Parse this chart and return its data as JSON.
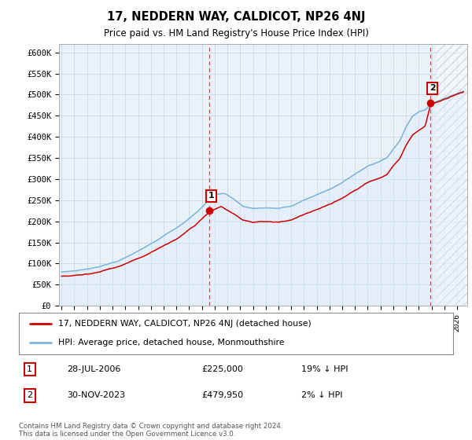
{
  "title": "17, NEDDERN WAY, CALDICOT, NP26 4NJ",
  "subtitle": "Price paid vs. HM Land Registry's House Price Index (HPI)",
  "ylabel_ticks": [
    "£0",
    "£50K",
    "£100K",
    "£150K",
    "£200K",
    "£250K",
    "£300K",
    "£350K",
    "£400K",
    "£450K",
    "£500K",
    "£550K",
    "£600K"
  ],
  "ytick_values": [
    0,
    50000,
    100000,
    150000,
    200000,
    250000,
    300000,
    350000,
    400000,
    450000,
    500000,
    550000,
    600000
  ],
  "ylim": [
    0,
    620000
  ],
  "xlim_start": 1994.8,
  "xlim_end": 2026.8,
  "hpi_line_color": "#7ab4d8",
  "price_line_color": "#cc0000",
  "hpi_fill_color": "#ddeeff",
  "legend_property_label": "17, NEDDERN WAY, CALDICOT, NP26 4NJ (detached house)",
  "legend_hpi_label": "HPI: Average price, detached house, Monmouthshire",
  "table_row1": [
    "1",
    "28-JUL-2006",
    "£225,000",
    "19% ↓ HPI"
  ],
  "table_row2": [
    "2",
    "30-NOV-2023",
    "£479,950",
    "2% ↓ HPI"
  ],
  "footnote": "Contains HM Land Registry data © Crown copyright and database right 2024.\nThis data is licensed under the Open Government Licence v3.0.",
  "bg_color": "#ffffff",
  "grid_color": "#c8d8e8",
  "vline_color": "#dd4444",
  "marker1_date": 2006.57,
  "marker1_price": 225000,
  "marker2_date": 2023.92,
  "marker2_price": 479950
}
